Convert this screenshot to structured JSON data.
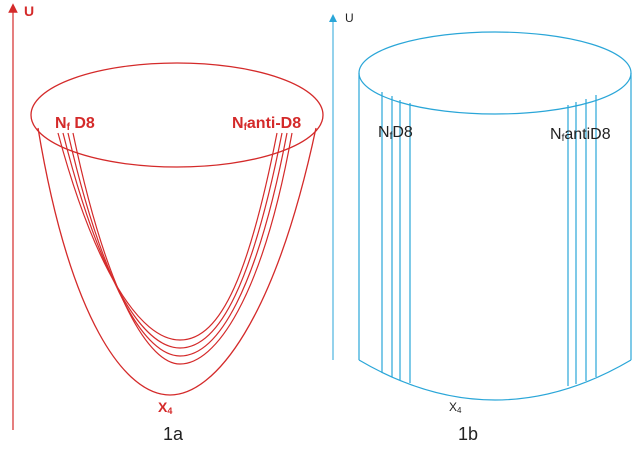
{
  "figure_a": {
    "axis_label": "U",
    "left_label_main": "N",
    "left_label_sub": "f",
    "left_label_rest": " D8",
    "right_label_main": "N",
    "right_label_sub": "f",
    "right_label_rest": "anti-D8",
    "bottom_main": "X",
    "bottom_sub": "4",
    "caption": "1a",
    "color": "#d42a2a"
  },
  "figure_b": {
    "axis_label": "U",
    "left_label_main": "N",
    "left_label_sub": "f",
    "left_label_rest": "D8",
    "right_label_main": "N",
    "right_label_sub": "f",
    "right_label_rest": "antiD8",
    "bottom_main": "X",
    "bottom_sub": "4",
    "caption": "1b",
    "color": "#2aa6d8"
  }
}
